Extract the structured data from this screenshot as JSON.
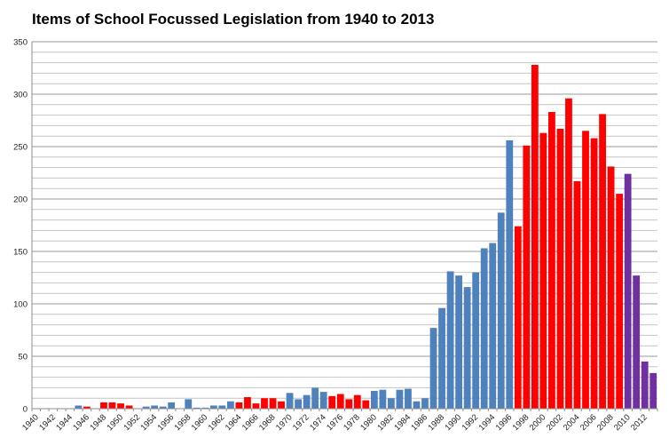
{
  "chart_data": {
    "type": "bar",
    "title": "Items of School Focussed Legislation from 1940 to 2013",
    "xlabel": "",
    "ylabel": "",
    "ylim": [
      0,
      350
    ],
    "yticks": [
      0,
      50,
      100,
      150,
      200,
      250,
      300,
      350
    ],
    "grid": true,
    "x_tick_labels": [
      "1940",
      "1942",
      "1944",
      "1946",
      "1948",
      "1950",
      "1952",
      "1954",
      "1956",
      "1958",
      "1960",
      "1962",
      "1964",
      "1966",
      "1968",
      "1970",
      "1972",
      "1974",
      "1976",
      "1978",
      "1980",
      "1982",
      "1984",
      "1986",
      "1988",
      "1990",
      "1992",
      "1994",
      "1996",
      "1998",
      "2000",
      "2002",
      "2004",
      "2006",
      "2008",
      "2010",
      "2012"
    ],
    "categories": [
      1940,
      1941,
      1942,
      1943,
      1944,
      1945,
      1946,
      1947,
      1948,
      1949,
      1950,
      1951,
      1952,
      1953,
      1954,
      1955,
      1956,
      1957,
      1958,
      1959,
      1960,
      1961,
      1962,
      1963,
      1964,
      1965,
      1966,
      1967,
      1968,
      1969,
      1970,
      1971,
      1972,
      1973,
      1974,
      1975,
      1976,
      1977,
      1978,
      1979,
      1980,
      1981,
      1982,
      1983,
      1984,
      1985,
      1986,
      1987,
      1988,
      1989,
      1990,
      1991,
      1992,
      1993,
      1994,
      1995,
      1996,
      1997,
      1998,
      1999,
      2000,
      2001,
      2002,
      2003,
      2004,
      2005,
      2006,
      2007,
      2008,
      2009,
      2010,
      2011,
      2012,
      2013
    ],
    "values": [
      0,
      0,
      0,
      0,
      0,
      3,
      2,
      0,
      6,
      6,
      5,
      3,
      0,
      2,
      3,
      2,
      6,
      0,
      9,
      1,
      1,
      3,
      3,
      7,
      6,
      11,
      5,
      10,
      10,
      7,
      15,
      9,
      13,
      20,
      16,
      12,
      14,
      9,
      13,
      8,
      17,
      18,
      10,
      18,
      19,
      7,
      10,
      77,
      96,
      131,
      127,
      116,
      130,
      153,
      158,
      187,
      256,
      174,
      251,
      328,
      263,
      283,
      267,
      296,
      217,
      265,
      258,
      281,
      231,
      205,
      224,
      127,
      45,
      34
    ],
    "colors": [
      "#ffffff",
      "#ffffff",
      "#ffffff",
      "#ffffff",
      "#ffffff",
      "#4f81bd",
      "#ff0000",
      "#ffffff",
      "#ff0000",
      "#ff0000",
      "#ff0000",
      "#ff0000",
      "#ffffff",
      "#4f81bd",
      "#4f81bd",
      "#4f81bd",
      "#4f81bd",
      "#ffffff",
      "#4f81bd",
      "#4f81bd",
      "#4f81bd",
      "#4f81bd",
      "#4f81bd",
      "#4f81bd",
      "#ff0000",
      "#ff0000",
      "#ff0000",
      "#ff0000",
      "#ff0000",
      "#ff0000",
      "#4f81bd",
      "#4f81bd",
      "#4f81bd",
      "#4f81bd",
      "#4f81bd",
      "#ff0000",
      "#ff0000",
      "#ff0000",
      "#ff0000",
      "#ff0000",
      "#4f81bd",
      "#4f81bd",
      "#4f81bd",
      "#4f81bd",
      "#4f81bd",
      "#4f81bd",
      "#4f81bd",
      "#4f81bd",
      "#4f81bd",
      "#4f81bd",
      "#4f81bd",
      "#4f81bd",
      "#4f81bd",
      "#4f81bd",
      "#4f81bd",
      "#4f81bd",
      "#4f81bd",
      "#ff0000",
      "#ff0000",
      "#ff0000",
      "#ff0000",
      "#ff0000",
      "#ff0000",
      "#ff0000",
      "#ff0000",
      "#ff0000",
      "#ff0000",
      "#ff0000",
      "#ff0000",
      "#ff0000",
      "#7030a0",
      "#7030a0",
      "#7030a0",
      "#7030a0"
    ]
  }
}
